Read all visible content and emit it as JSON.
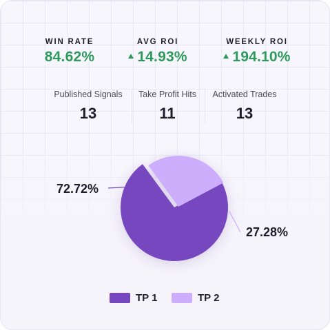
{
  "kpis": [
    {
      "label": "WIN RATE",
      "value": "84.62%",
      "trend": ""
    },
    {
      "label": "AVG ROI",
      "value": "14.93%",
      "trend": "up"
    },
    {
      "label": "WEEKLY ROI",
      "value": "194.10%",
      "trend": "up"
    }
  ],
  "stats": [
    {
      "label": "Published Signals",
      "value": "13"
    },
    {
      "label": "Take Profit Hits",
      "value": "11"
    },
    {
      "label": "Activated Trades",
      "value": "13"
    }
  ],
  "icons": {
    "trend_up": "triangle-up-icon"
  },
  "colors": {
    "positive": "#2d9a5b",
    "tp1": "#7747c0",
    "tp2": "#cdaefd"
  },
  "chart_data": {
    "type": "pie",
    "labels": [
      "TP 1",
      "TP 2"
    ],
    "values": [
      72.72,
      27.28
    ],
    "value_labels": [
      "72.72%",
      "27.28%"
    ],
    "colors": [
      "#7747c0",
      "#cdaefd"
    ],
    "legend": "bottom"
  }
}
